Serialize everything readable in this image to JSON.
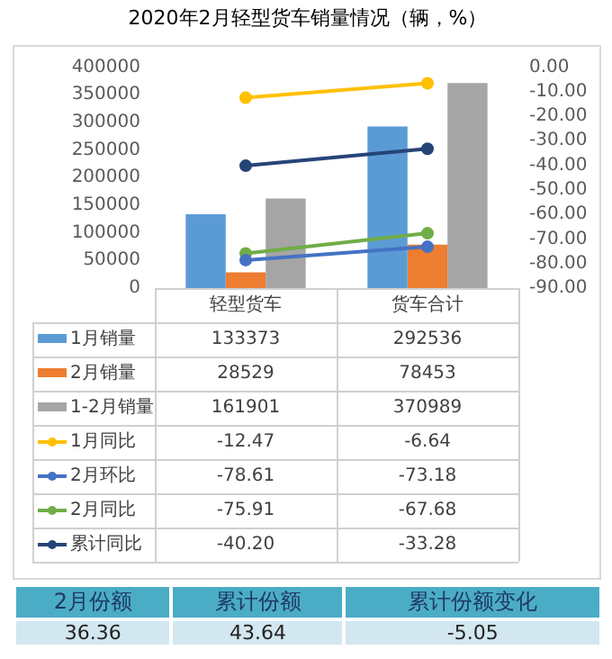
{
  "chart_data": [
    {
      "type": "bar",
      "title": "2020年2月轻型货车销量情况（辆，%）",
      "categories": [
        "轻型货车",
        "货车合计"
      ],
      "series": [
        {
          "name": "1月销量",
          "type": "bar",
          "color": "#5b9bd5",
          "values": [
            133373,
            292536
          ],
          "value_labels": [
            "133373",
            "292536"
          ]
        },
        {
          "name": "2月销量",
          "type": "bar",
          "color": "#ed7d31",
          "values": [
            28529,
            78453
          ],
          "value_labels": [
            "28529",
            "78453"
          ]
        },
        {
          "name": "1-2月销量",
          "type": "bar",
          "color": "#a5a5a5",
          "values": [
            161901,
            370989
          ],
          "value_labels": [
            "161901",
            "370989"
          ]
        },
        {
          "name": "1月同比",
          "type": "line",
          "axis": "y2",
          "color": "#ffc000",
          "values": [
            -12.47,
            -6.64
          ],
          "value_labels": [
            "-12.47",
            "-6.64"
          ]
        },
        {
          "name": "2月环比",
          "type": "line",
          "axis": "y2",
          "color": "#4472c4",
          "values": [
            -78.61,
            -73.18
          ],
          "value_labels": [
            "-78.61",
            "-73.18"
          ]
        },
        {
          "name": "2月同比",
          "type": "line",
          "axis": "y2",
          "color": "#70ad47",
          "values": [
            -75.91,
            -67.68
          ],
          "value_labels": [
            "-75.91",
            "-67.68"
          ]
        },
        {
          "name": "累计同比",
          "type": "line",
          "axis": "y2",
          "color": "#264478",
          "values": [
            -40.2,
            -33.28
          ],
          "value_labels": [
            "-40.20",
            "-33.28"
          ]
        }
      ],
      "ylim": [
        0,
        400000
      ],
      "yticks": [
        0,
        50000,
        100000,
        150000,
        200000,
        250000,
        300000,
        350000,
        400000
      ],
      "y2lim": [
        -90,
        0
      ],
      "y2ticks": [
        {
          "value": 0,
          "label": "0.00"
        },
        {
          "value": -10,
          "label": "-10.00"
        },
        {
          "value": -20,
          "label": "-20.00"
        },
        {
          "value": -30,
          "label": "-30.00"
        },
        {
          "value": -40,
          "label": "-40.00"
        },
        {
          "value": -50,
          "label": "-50.00"
        },
        {
          "value": -60,
          "label": "-60.00"
        },
        {
          "value": -70,
          "label": "-70.00"
        },
        {
          "value": -80,
          "label": "-80.00"
        },
        {
          "value": -90,
          "label": "-90.00"
        }
      ],
      "marker": "circle",
      "legend": "bottom"
    },
    {
      "type": "other",
      "categories": [
        "2月份额",
        "累计份额",
        "累计份额变化"
      ],
      "values": [
        36.36,
        43.64,
        -5.05
      ],
      "data_labels": true
    }
  ]
}
